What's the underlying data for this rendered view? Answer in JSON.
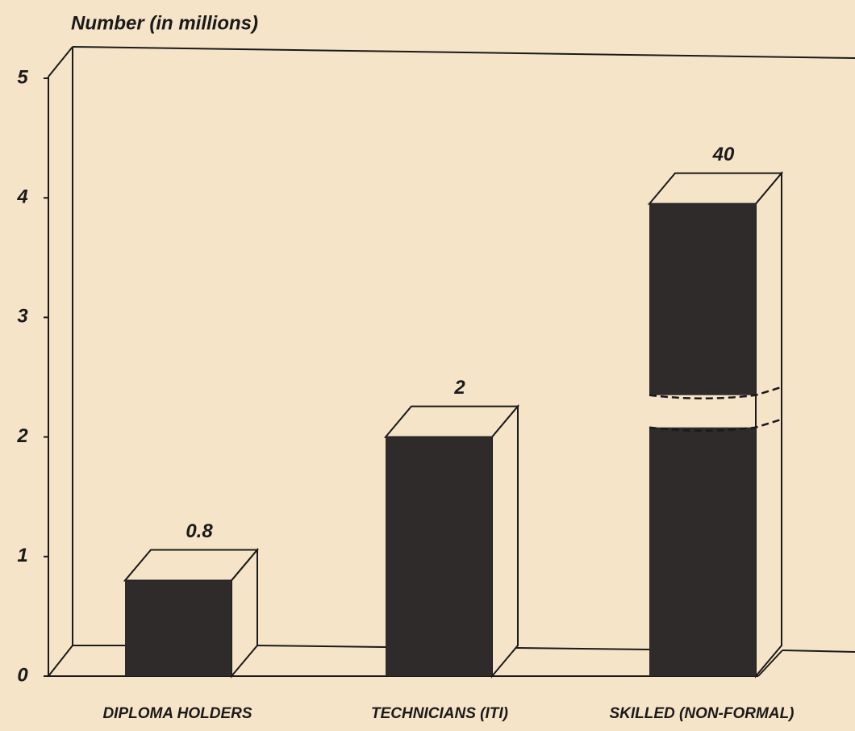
{
  "chart_data": {
    "type": "bar3d",
    "title": "Number (in millions)",
    "categories": [
      "DIPLOMA HOLDERS",
      "TECHNICIANS (ITI)",
      "SKILLED (NON-FORMAL)"
    ],
    "values": [
      0.8,
      2,
      40
    ],
    "value_labels": [
      "0.8",
      "2",
      "40"
    ],
    "color": "#2e2b2a",
    "ylim": [
      0,
      5
    ],
    "yticks": [
      0,
      1,
      2,
      3,
      4,
      5
    ]
  }
}
